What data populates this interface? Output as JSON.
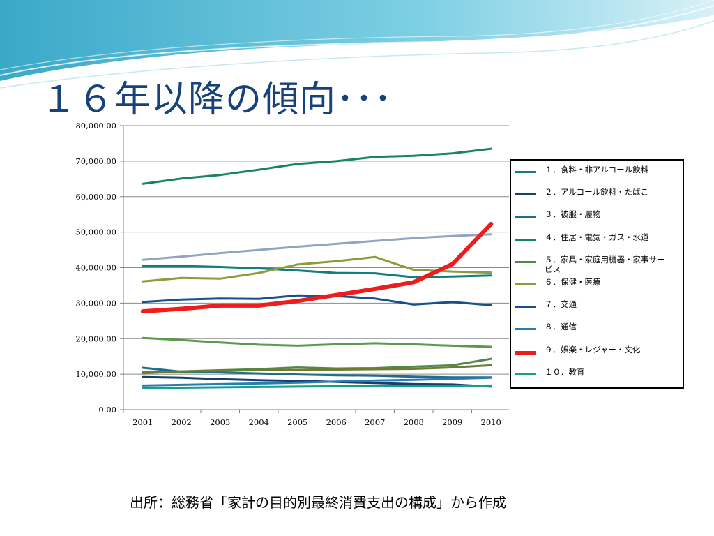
{
  "slide": {
    "title": "１６年以降の傾向･･･",
    "source": "出所：総務省「家計の目的別最終消費支出の構成」から作成"
  },
  "colors": {
    "title": "#17437a",
    "wave_dark": "#4fb6cf",
    "wave_light": "#bfe6f0"
  },
  "chart_data": {
    "type": "line",
    "title": "",
    "xlabel": "",
    "ylabel": "",
    "categories": [
      "2001",
      "2002",
      "2003",
      "2004",
      "2005",
      "2006",
      "2007",
      "2008",
      "2009",
      "2010"
    ],
    "ylim": [
      0,
      80000
    ],
    "yticks": [
      "0.00",
      "10,000.00",
      "20,000.00",
      "30,000.00",
      "40,000.00",
      "50,000.00",
      "60,000.00",
      "70,000.00",
      "80,000.00"
    ],
    "grid": "horizontal",
    "legend_position": "right",
    "series": [
      {
        "name": "１．食料・非アルコール飲料",
        "color": "#137c7c",
        "width": 3,
        "values": [
          40500,
          40500,
          40200,
          39800,
          39200,
          38500,
          38400,
          37300,
          37500,
          37800
        ]
      },
      {
        "name": "２．アルコール飲料・たばこ",
        "color": "#163f6e",
        "width": 3,
        "values": [
          9200,
          9000,
          8600,
          8300,
          8100,
          7800,
          7500,
          7200,
          7100,
          6500
        ]
      },
      {
        "name": "３．被服・履物",
        "color": "#1f6e8c",
        "width": 3,
        "values": [
          11800,
          10700,
          10500,
          10200,
          9900,
          9700,
          9600,
          9300,
          9100,
          9100
        ]
      },
      {
        "name": "４．住居・電気・ガス・水道",
        "color": "#178757",
        "width": 3,
        "values": [
          63600,
          65100,
          66100,
          67600,
          69200,
          70000,
          71200,
          71500,
          72200,
          73500
        ]
      },
      {
        "name": "５．家具・家庭用機器・家事サービス",
        "color": "#4e8a45",
        "width": 3,
        "values": [
          10300,
          10800,
          11100,
          11400,
          11900,
          11600,
          11700,
          12100,
          12500,
          14300
        ]
      },
      {
        "name": "６．保健・医療",
        "color": "#8c9c3c",
        "width": 3,
        "values": [
          36100,
          37100,
          36900,
          38500,
          40900,
          41800,
          43000,
          39400,
          38900,
          38600
        ]
      },
      {
        "name": "７．交通",
        "color": "#17508c",
        "width": 3,
        "values": [
          30300,
          31000,
          31300,
          31200,
          32200,
          32000,
          31300,
          29600,
          30300,
          29400
        ]
      },
      {
        "name": "８．通信",
        "color": "#2a7ab4",
        "width": 3,
        "values": [
          6800,
          7000,
          7200,
          7400,
          7600,
          7900,
          8200,
          8400,
          8700,
          9000
        ]
      },
      {
        "name": "９．娯楽・レジャー・文化",
        "color": "#ee1c1c",
        "width": 6,
        "values": [
          27700,
          28400,
          29300,
          29300,
          30600,
          32300,
          34000,
          35900,
          41000,
          52300
        ]
      },
      {
        "name": "１０．教育",
        "color": "#18a085",
        "width": 3,
        "values": [
          6000,
          6200,
          6300,
          6400,
          6500,
          6600,
          6600,
          6700,
          6700,
          6800
        ]
      },
      {
        "name": "",
        "color": "#8fa5c2",
        "width": 3,
        "values": [
          42200,
          43100,
          44100,
          45000,
          45900,
          46700,
          47500,
          48300,
          48900,
          49400
        ]
      },
      {
        "name": "",
        "color": "#5b9a4a",
        "width": 3,
        "values": [
          20200,
          19600,
          18900,
          18300,
          18000,
          18400,
          18700,
          18400,
          18000,
          17700
        ]
      },
      {
        "name": "",
        "color": "#6c7d33",
        "width": 3,
        "values": [
          10600,
          10800,
          11000,
          11100,
          11200,
          11300,
          11400,
          11500,
          11900,
          12500
        ]
      }
    ]
  }
}
